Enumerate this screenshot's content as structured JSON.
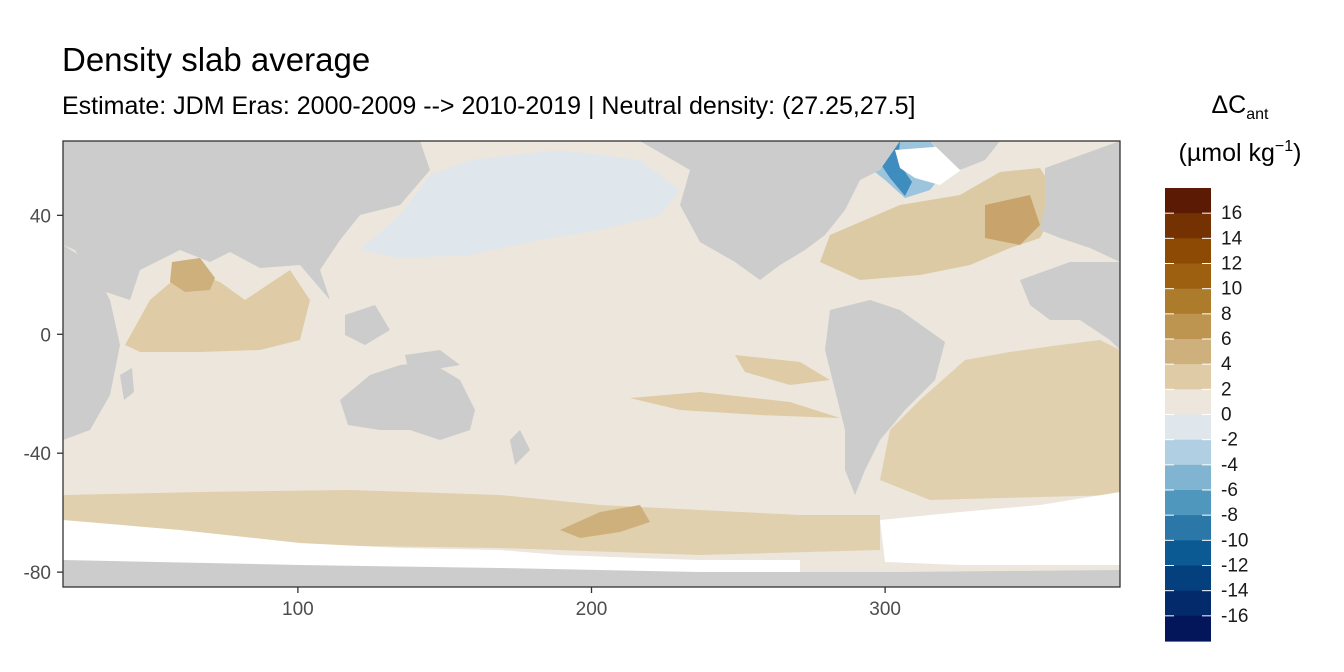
{
  "chart_data": {
    "type": "heatmap",
    "title": "Density slab average",
    "subtitle": "Estimate: JDM Eras: 2000-2009 --> 2010-2019 | Neutral density: (27.25,27.5]",
    "xlabel": "",
    "ylabel": "",
    "x_ticks": [
      100,
      200,
      300
    ],
    "y_ticks": [
      40,
      0,
      -40,
      -80
    ],
    "xlim": [
      20,
      380
    ],
    "ylim": [
      -85,
      65
    ],
    "grid": false,
    "land_color": "#cccccc",
    "missing_color": "#ffffff",
    "legend": {
      "title_main": "ΔC",
      "title_sub": "ant",
      "unit_prefix": "(µmol kg",
      "unit_exp": "−1",
      "unit_suffix": ")",
      "placement": "right",
      "labels": [
        "16",
        "14",
        "12",
        "10",
        "8",
        "6",
        "4",
        "2",
        "0",
        "-2",
        "-4",
        "-6",
        "-8",
        "-10",
        "-12",
        "-14",
        "-16"
      ],
      "colors": [
        "#5a1a03",
        "#743203",
        "#8c4a04",
        "#9c6010",
        "#ac7c2c",
        "#bd9450",
        "#cdb07c",
        "#dfcca6",
        "#ece6dc",
        "#dfe7ec",
        "#b1cfe2",
        "#81b4d1",
        "#5097bd",
        "#2a77a8",
        "#0b5a94",
        "#043f7e",
        "#032b6c",
        "#021659"
      ]
    },
    "regions": [
      {
        "name": "Ocean background",
        "value": 1,
        "color": "#ece6dc"
      },
      {
        "name": "North Pacific",
        "value": -0.5,
        "color": "#dfe7ec"
      },
      {
        "name": "North Atlantic",
        "value": 4,
        "color": "#dccaa4"
      },
      {
        "name": "Arabian Sea",
        "value": 6,
        "color": "#cdb07c"
      },
      {
        "name": "Bay of Bengal",
        "value": 3,
        "color": "#dfcca6"
      },
      {
        "name": "South Atlantic",
        "value": 3,
        "color": "#e0d0ae"
      },
      {
        "name": "Southern Ocean",
        "value": 5,
        "color": "#d5bf95"
      },
      {
        "name": "Labrador Sea",
        "value": -8,
        "color": "#3f8cbf"
      }
    ]
  }
}
